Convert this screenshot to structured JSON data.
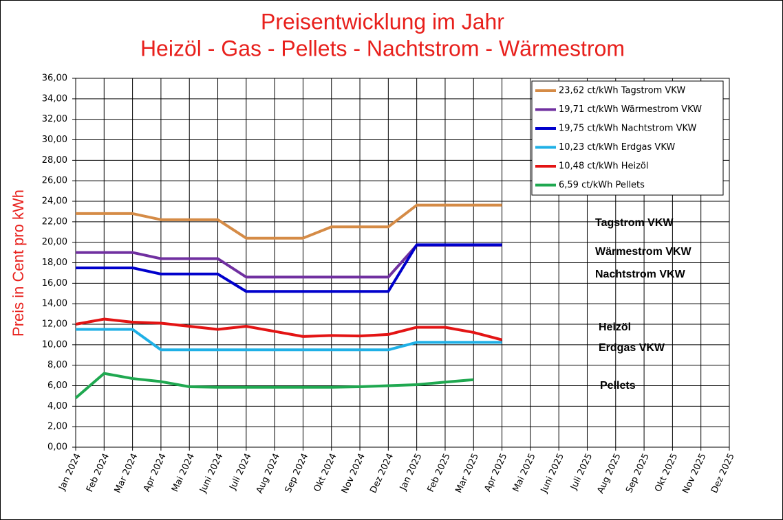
{
  "chart_data": {
    "type": "line",
    "title": "Preisentwicklung im Jahr",
    "subtitle": "Heizöl - Gas - Pellets - Nachtstrom - Wärmestrom",
    "y_label": "Preis in Cent pro kWh",
    "categories": [
      "Jan 2024",
      "Feb 2024",
      "Mar 2024",
      "Apr 2024",
      "Mai 2024",
      "Juni 2024",
      "Juli 2024",
      "Aug 2024",
      "Sep 2024",
      "Okt 2024",
      "Nov 2024",
      "Dez 2024",
      "Jan 2025",
      "Feb 2025",
      "Mar 2025",
      "Apr 2025",
      "Mai 2025",
      "Juni 2025",
      "Juli 2025",
      "Aug 2025",
      "Sep 2025",
      "Okt 2025",
      "Nov 2025",
      "Dez 2025"
    ],
    "series": [
      {
        "name": "23,62 ct/kWh Tagstrom VKW",
        "color": "#d58b46",
        "values": [
          22.8,
          22.8,
          22.8,
          22.2,
          22.2,
          22.2,
          20.4,
          20.4,
          20.4,
          21.5,
          21.5,
          21.5,
          23.62,
          23.62,
          23.62,
          23.62,
          null,
          null,
          null,
          null,
          null,
          null,
          null,
          null
        ]
      },
      {
        "name": "19,71 ct/kWh Wärmestrom VKW",
        "color": "#7030a0",
        "values": [
          19.0,
          19.0,
          19.0,
          18.4,
          18.4,
          18.4,
          16.6,
          16.6,
          16.6,
          16.6,
          16.6,
          16.6,
          19.71,
          19.71,
          19.71,
          19.71,
          null,
          null,
          null,
          null,
          null,
          null,
          null,
          null
        ]
      },
      {
        "name": "19,75 ct/kWh Nachtstrom VKW",
        "color": "#0000cc",
        "values": [
          17.5,
          17.5,
          17.5,
          16.9,
          16.9,
          16.9,
          15.2,
          15.2,
          15.2,
          15.2,
          15.2,
          15.2,
          19.75,
          19.75,
          19.75,
          19.75,
          null,
          null,
          null,
          null,
          null,
          null,
          null,
          null
        ]
      },
      {
        "name": "10,23 ct/kWh Erdgas VKW",
        "color": "#1fb0e6",
        "values": [
          11.5,
          11.5,
          11.5,
          9.5,
          9.5,
          9.5,
          9.5,
          9.5,
          9.5,
          9.5,
          9.5,
          9.5,
          10.23,
          10.23,
          10.23,
          10.23,
          null,
          null,
          null,
          null,
          null,
          null,
          null,
          null
        ]
      },
      {
        "name": "10,48 ct/kWh Heizöl",
        "color": "#e31414",
        "values": [
          12.0,
          12.5,
          12.2,
          12.1,
          11.8,
          11.5,
          11.8,
          11.3,
          10.8,
          10.9,
          10.85,
          11.0,
          11.7,
          11.7,
          11.2,
          10.48,
          null,
          null,
          null,
          null,
          null,
          null,
          null,
          null
        ]
      },
      {
        "name": "6,59 ct/kWh Pellets",
        "color": "#1fa850",
        "values": [
          4.8,
          7.2,
          6.7,
          6.4,
          5.9,
          5.85,
          5.85,
          5.85,
          5.85,
          5.85,
          5.9,
          6.0,
          6.1,
          6.35,
          6.59,
          null,
          null,
          null,
          null,
          null,
          null,
          null,
          null,
          null
        ]
      }
    ],
    "annotations": [
      {
        "text": "Tagstrom VKW",
        "color": "#d0822f"
      },
      {
        "text": "Wärmestrom VKW",
        "color": "#7030a0"
      },
      {
        "text": "Nachtstrom VKW",
        "color": "#0000cc"
      },
      {
        "text": "Heizöl",
        "color": "#e31414"
      },
      {
        "text": "Erdgas VKW",
        "color": "#1fa0d8"
      },
      {
        "text": "Pellets",
        "color": "#1fa850"
      }
    ],
    "ylim": [
      0,
      36
    ],
    "yticks": [
      {
        "value": 0,
        "label": "0,00"
      },
      {
        "value": 2,
        "label": "2,00"
      },
      {
        "value": 4,
        "label": "4,00"
      },
      {
        "value": 6,
        "label": "6,00"
      },
      {
        "value": 8,
        "label": "8,00"
      },
      {
        "value": 10,
        "label": "10,00"
      },
      {
        "value": 12,
        "label": "12,00"
      },
      {
        "value": 14,
        "label": "14,00"
      },
      {
        "value": 16,
        "label": "16,00"
      },
      {
        "value": 18,
        "label": "18,00"
      },
      {
        "value": 20,
        "label": "20,00"
      },
      {
        "value": 22,
        "label": "22,00"
      },
      {
        "value": 24,
        "label": "24,00"
      },
      {
        "value": 26,
        "label": "26,00"
      },
      {
        "value": 28,
        "label": "28,00"
      },
      {
        "value": 30,
        "label": "30,00"
      },
      {
        "value": 32,
        "label": "32,00"
      },
      {
        "value": 34,
        "label": "34,00"
      },
      {
        "value": 36,
        "label": "36,00"
      }
    ],
    "grid": true,
    "legend": "upper right"
  }
}
